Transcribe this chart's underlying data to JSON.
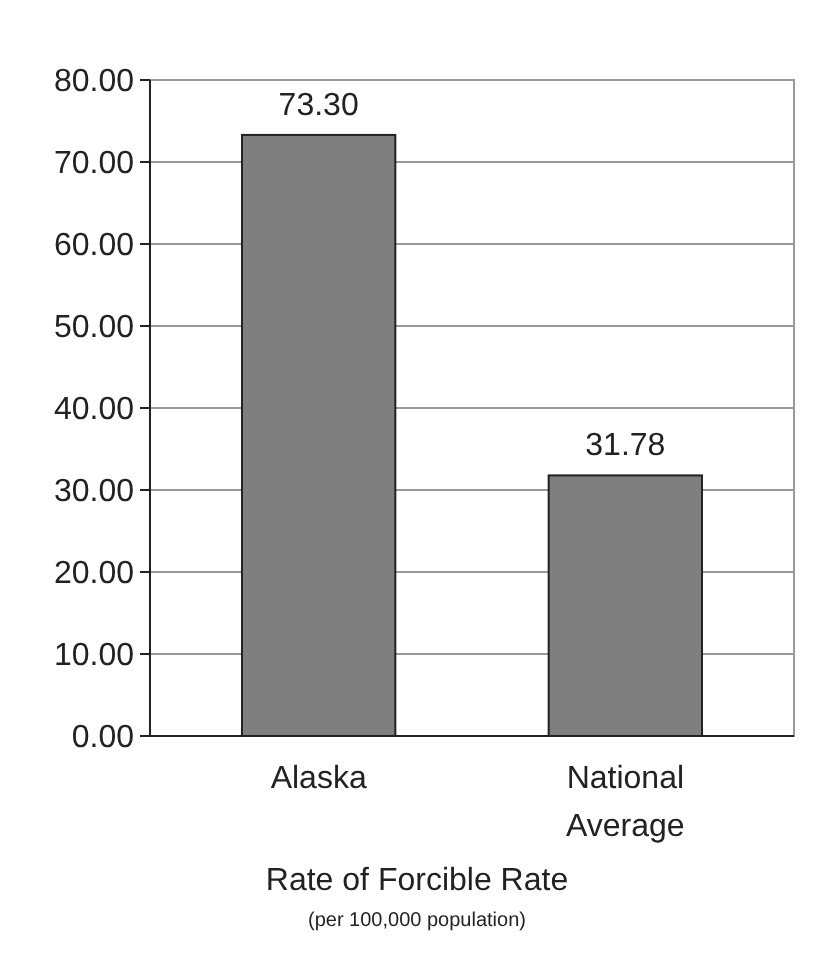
{
  "chart_data": {
    "type": "bar",
    "categories": [
      "Alaska",
      "National Average"
    ],
    "values": [
      73.3,
      31.78
    ],
    "value_labels": [
      "73.30",
      "31.78"
    ],
    "color": "#7f7f7f",
    "ylim": [
      0,
      80
    ],
    "yticks": [
      {
        "value": 0,
        "label": "0.00"
      },
      {
        "value": 10,
        "label": "10.00"
      },
      {
        "value": 20,
        "label": "20.00"
      },
      {
        "value": 30,
        "label": "30.00"
      },
      {
        "value": 40,
        "label": "40.00"
      },
      {
        "value": 50,
        "label": "50.00"
      },
      {
        "value": 60,
        "label": "60.00"
      },
      {
        "value": 70,
        "label": "70.00"
      },
      {
        "value": 80,
        "label": "80.00"
      }
    ],
    "grid": "y",
    "xlabel": "Rate of Forcible Rate",
    "annotations": [
      "(per 100,000 population)"
    ]
  }
}
